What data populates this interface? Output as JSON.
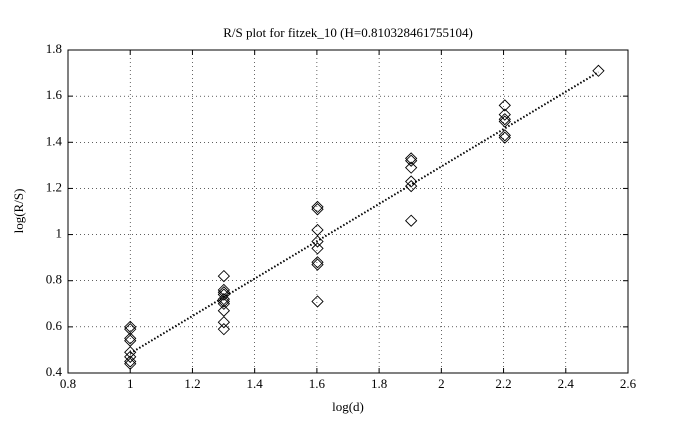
{
  "chart_data": {
    "type": "scatter",
    "title": "R/S plot for fitzek_10 (H=0.810328461755104)",
    "xlabel": "log(d)",
    "ylabel": "log(R/S)",
    "x": [
      1,
      1,
      1,
      1,
      1,
      1,
      1,
      1,
      1.301,
      1.301,
      1.301,
      1.301,
      1.301,
      1.301,
      1.301,
      1.301,
      1.301,
      1.301,
      1.602,
      1.602,
      1.602,
      1.602,
      1.602,
      1.602,
      1.602,
      1.602,
      1.903,
      1.903,
      1.903,
      1.903,
      1.903,
      1.903,
      2.204,
      2.204,
      2.204,
      2.204,
      2.204,
      2.204,
      2.505
    ],
    "values": [
      0.6,
      0.59,
      0.55,
      0.54,
      0.49,
      0.47,
      0.45,
      0.44,
      0.82,
      0.76,
      0.75,
      0.74,
      0.72,
      0.71,
      0.7,
      0.67,
      0.62,
      0.59,
      1.12,
      1.11,
      1.02,
      0.97,
      0.94,
      0.88,
      0.87,
      0.71,
      1.33,
      1.32,
      1.29,
      1.23,
      1.21,
      1.06,
      1.56,
      1.52,
      1.5,
      1.49,
      1.43,
      1.42,
      1.71
    ],
    "color": "#000000",
    "fit_line": {
      "x": [
        1,
        2.505
      ],
      "values": [
        0.485,
        1.704
      ]
    },
    "xlim": [
      0.8,
      2.6
    ],
    "xticks": [
      0.8,
      1,
      1.2,
      1.4,
      1.6,
      1.8,
      2,
      2.2,
      2.4,
      2.6
    ],
    "ylim": [
      0.4,
      1.8
    ],
    "yticks": [
      0.4,
      0.6,
      0.8,
      1,
      1.2,
      1.4,
      1.6,
      1.8
    ],
    "grid": true
  }
}
